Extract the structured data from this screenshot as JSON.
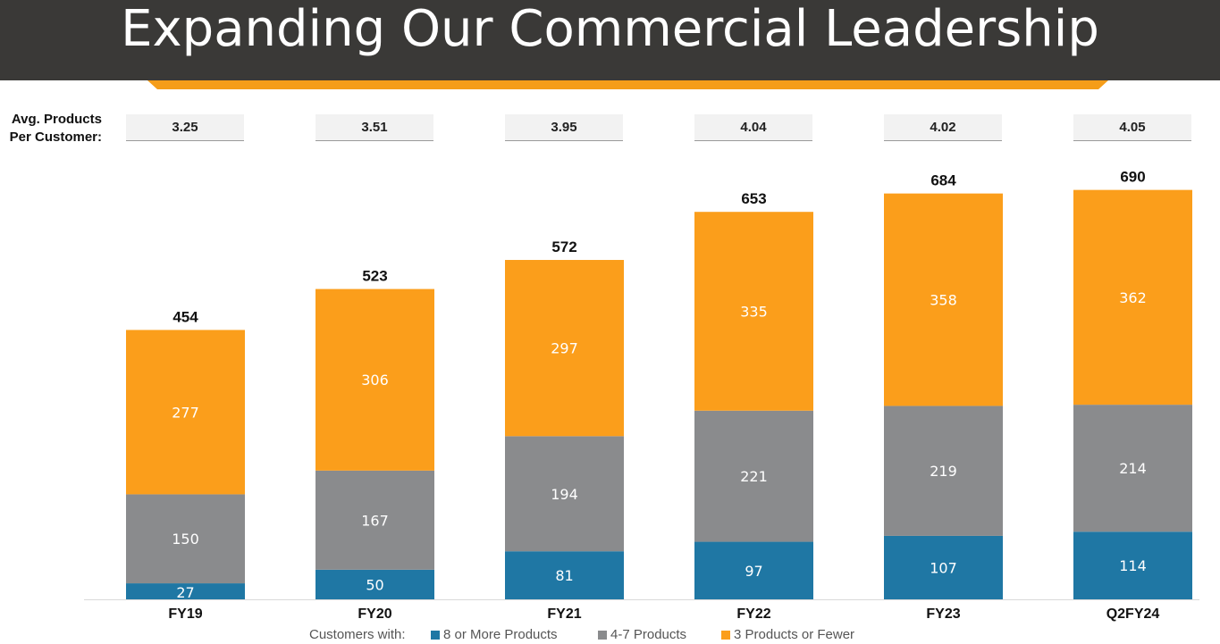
{
  "title": "Expanding Our Commercial Leadership",
  "avg_products": {
    "label_line1": "Avg. Products",
    "label_line2": "Per Customer:",
    "values": [
      "3.25",
      "3.51",
      "3.95",
      "4.04",
      "4.02",
      "4.05"
    ]
  },
  "legend": {
    "prefix": "Customers with:",
    "items": [
      "8 or More Products",
      "4-7 Products",
      "3 Products or Fewer"
    ]
  },
  "colors": {
    "title_bg": "#3a3937",
    "accent": "#f59d19",
    "eight_plus": "#1f77a4",
    "four_seven": "#8a8b8d",
    "three_fewer": "#fb9e1b"
  },
  "chart_data": {
    "type": "bar",
    "stacked": true,
    "categories": [
      "FY19",
      "FY20",
      "FY21",
      "FY22",
      "FY23",
      "Q2FY24"
    ],
    "series": [
      {
        "name": "8 or More Products",
        "values": [
          27,
          50,
          81,
          97,
          107,
          114
        ]
      },
      {
        "name": "4-7 Products",
        "values": [
          150,
          167,
          194,
          221,
          219,
          214
        ]
      },
      {
        "name": "3 Products or Fewer",
        "values": [
          277,
          306,
          297,
          335,
          358,
          362
        ]
      }
    ],
    "totals": [
      454,
      523,
      572,
      653,
      684,
      690
    ],
    "ylim": [
      0,
      800
    ]
  }
}
